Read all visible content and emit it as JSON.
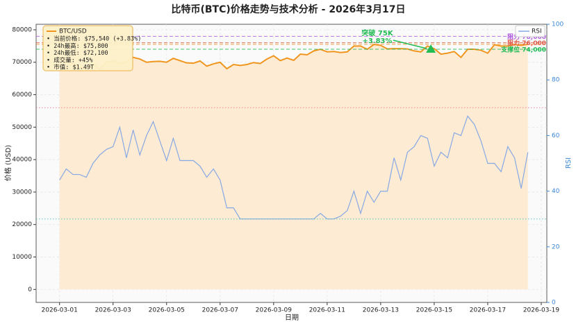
{
  "chart_data": {
    "type": "line",
    "title": "比特币(BTC)价格走势与技术分析 - 2026年3月17日",
    "xlabel": "日期",
    "ylabel": "价格 (USD)",
    "y2label": "RSI",
    "x": [
      "2026-03-01T00:00",
      "2026-03-01T06:00",
      "2026-03-01T12:00",
      "2026-03-01T18:00",
      "2026-03-02T00:00",
      "2026-03-02T06:00",
      "2026-03-02T12:00",
      "2026-03-02T18:00",
      "2026-03-03T00:00",
      "2026-03-03T06:00",
      "2026-03-03T12:00",
      "2026-03-03T18:00",
      "2026-03-04T00:00",
      "2026-03-04T06:00",
      "2026-03-04T12:00",
      "2026-03-04T18:00",
      "2026-03-05T00:00",
      "2026-03-05T06:00",
      "2026-03-05T12:00",
      "2026-03-05T18:00",
      "2026-03-06T00:00",
      "2026-03-06T06:00",
      "2026-03-06T12:00",
      "2026-03-06T18:00",
      "2026-03-07T00:00",
      "2026-03-07T06:00",
      "2026-03-07T12:00",
      "2026-03-07T18:00",
      "2026-03-08T00:00",
      "2026-03-08T06:00",
      "2026-03-08T12:00",
      "2026-03-08T18:00",
      "2026-03-09T00:00",
      "2026-03-09T06:00",
      "2026-03-09T12:00",
      "2026-03-09T18:00",
      "2026-03-10T00:00",
      "2026-03-10T06:00",
      "2026-03-10T12:00",
      "2026-03-10T18:00",
      "2026-03-11T00:00",
      "2026-03-11T06:00",
      "2026-03-11T12:00",
      "2026-03-11T18:00",
      "2026-03-12T00:00",
      "2026-03-12T06:00",
      "2026-03-12T12:00",
      "2026-03-12T18:00",
      "2026-03-13T00:00",
      "2026-03-13T06:00",
      "2026-03-13T12:00",
      "2026-03-13T18:00",
      "2026-03-14T00:00",
      "2026-03-14T06:00",
      "2026-03-14T12:00",
      "2026-03-14T18:00",
      "2026-03-15T00:00",
      "2026-03-15T06:00",
      "2026-03-15T12:00",
      "2026-03-15T18:00",
      "2026-03-16T00:00",
      "2026-03-16T06:00",
      "2026-03-16T12:00",
      "2026-03-16T18:00",
      "2026-03-17T00:00",
      "2026-03-17T06:00",
      "2026-03-17T12:00",
      "2026-03-17T18:00",
      "2026-03-18T00:00",
      "2026-03-18T06:00",
      "2026-03-18T12:00"
    ],
    "series": [
      {
        "name": "BTC/USD",
        "color": "#f0961e",
        "fill": "#fdebd3",
        "values": [
          71500,
          70500,
          69500,
          68500,
          68000,
          69500,
          67800,
          70000,
          70500,
          69500,
          70000,
          71500,
          71000,
          70000,
          70200,
          70300,
          70000,
          71200,
          70500,
          69800,
          69700,
          70400,
          68800,
          69500,
          70000,
          68000,
          69300,
          69000,
          69300,
          69900,
          69600,
          71000,
          72000,
          70500,
          71300,
          70600,
          72500,
          72300,
          73500,
          74000,
          73200,
          73300,
          73000,
          73200,
          75000,
          75000,
          74000,
          75500,
          75200,
          74100,
          74200,
          74200,
          74100,
          73500,
          73200,
          75000,
          74200,
          72500,
          72800,
          73300,
          71500,
          74000,
          74000,
          73700,
          72800,
          75400,
          75000,
          75000,
          75500,
          75200,
          75540
        ]
      },
      {
        "name": "RSI",
        "color": "#86a8e4",
        "axis": "y2",
        "values": [
          44,
          48,
          46,
          46,
          45,
          50,
          53,
          55,
          56,
          63,
          52,
          62,
          53,
          60,
          65,
          58,
          51,
          59,
          51,
          51,
          51,
          49,
          45,
          48,
          44,
          34,
          34,
          30,
          30,
          30,
          30,
          30,
          30,
          30,
          30,
          30,
          30,
          30,
          30,
          32,
          30,
          30,
          31,
          33,
          40,
          32,
          40,
          36,
          40,
          40,
          52,
          44,
          54,
          56,
          60,
          59,
          49,
          54,
          52,
          61,
          60,
          67,
          64,
          58,
          50,
          50,
          47,
          56,
          52,
          41,
          54
        ]
      }
    ],
    "xlim": [
      "2026-02-28T03:00",
      "2026-03-19T05:00"
    ],
    "xticks": [
      "2026-03-01",
      "2026-03-03",
      "2026-03-05",
      "2026-03-07",
      "2026-03-09",
      "2026-03-11",
      "2026-03-13",
      "2026-03-15",
      "2026-03-17",
      "2026-03-19"
    ],
    "ylim": [
      -4000,
      81700
    ],
    "yticks": [
      0,
      10000,
      20000,
      30000,
      40000,
      50000,
      60000,
      70000,
      80000
    ],
    "y2lim": [
      0,
      100
    ],
    "y2ticks": [
      0,
      20,
      40,
      60,
      80,
      100
    ],
    "grid": true,
    "hlines": [
      {
        "value": 78000,
        "label": "阻力 78,000",
        "color": "#b05ce0"
      },
      {
        "value": 76000,
        "label": "阻力 76,000",
        "color": "#e05a4a"
      },
      {
        "value": 75540,
        "color": "#f0961e"
      },
      {
        "value": 74000,
        "label": "支撑位 74,000",
        "color": "#22bb55"
      },
      {
        "value": 70,
        "color": "#e87090",
        "axis": "y2"
      },
      {
        "value": 30,
        "color": "#40c0b0",
        "axis": "y2"
      }
    ],
    "annotation": {
      "text": "突破 75K",
      "subtext": "+3.83%",
      "x": "2026-03-14T21:00",
      "y": 74000,
      "color": "#22bb55"
    },
    "info_box": [
      "• 当前价格: $75,540 (+3.83%)",
      "• 24h最高: $75,800",
      "• 24h最低: $72,100",
      "• 成交量: +45%",
      "• 市值: $1.49T"
    ]
  }
}
